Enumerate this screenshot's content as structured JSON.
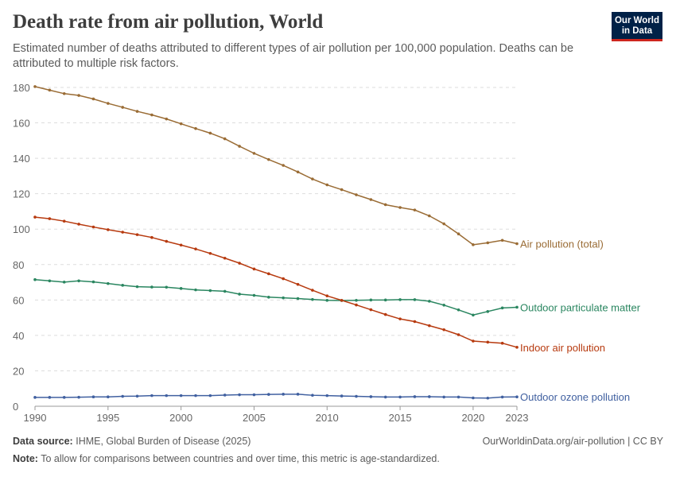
{
  "header": {
    "title": "Death rate from air pollution, World",
    "subtitle": "Estimated number of deaths attributed to different types of air pollution per 100,000 population. Deaths can be attributed to multiple risk factors.",
    "logo_line1": "Our World",
    "logo_line2": "in Data"
  },
  "footer": {
    "source_label": "Data source:",
    "source": "IHME, Global Burden of Disease (2025)",
    "url": "OurWorldinData.org/air-pollution | CC BY",
    "note_label": "Note:",
    "note": "To allow for comparisons between countries and over time, this metric is age-standardized."
  },
  "chart_data": {
    "type": "line",
    "title": "Death rate from air pollution, World",
    "xlim": [
      1990,
      2023
    ],
    "ylim": [
      0,
      180
    ],
    "xticks": [
      1990,
      1995,
      2000,
      2005,
      2010,
      2015,
      2020,
      2023
    ],
    "yticks": [
      0,
      20,
      40,
      60,
      80,
      100,
      120,
      140,
      160,
      180
    ],
    "grid": "horizontal dashed",
    "legend": "inline-right",
    "x": [
      1990,
      1991,
      1992,
      1993,
      1994,
      1995,
      1996,
      1997,
      1998,
      1999,
      2000,
      2001,
      2002,
      2003,
      2004,
      2005,
      2006,
      2007,
      2008,
      2009,
      2010,
      2011,
      2012,
      2013,
      2014,
      2015,
      2016,
      2017,
      2018,
      2019,
      2020,
      2021,
      2022,
      2023
    ],
    "series": [
      {
        "name": "Air pollution (total)",
        "color": "#9a6c35",
        "values": [
          180.5,
          178.5,
          176.5,
          175.5,
          173.5,
          171,
          168.8,
          166.5,
          164.5,
          162.2,
          159.5,
          156.8,
          154.2,
          151,
          146.8,
          142.8,
          139.3,
          136,
          132.3,
          128.3,
          125,
          122.3,
          119.4,
          116.7,
          113.8,
          112.2,
          110.8,
          107.5,
          103,
          97.3,
          91.2,
          92.3,
          93.7,
          91.8
        ]
      },
      {
        "name": "Outdoor particulate matter",
        "color": "#2a8660",
        "values": [
          71.5,
          70.8,
          70.1,
          70.8,
          70.2,
          69.3,
          68.3,
          67.5,
          67.3,
          67.2,
          66.5,
          65.7,
          65.3,
          64.9,
          63.3,
          62.6,
          61.6,
          61.2,
          60.8,
          60.3,
          59.8,
          59.7,
          59.8,
          60,
          60,
          60.2,
          60.2,
          59.3,
          57.1,
          54.4,
          51.5,
          53.5,
          55.5,
          55.9
        ]
      },
      {
        "name": "Indoor air pollution",
        "color": "#b73a0f",
        "values": [
          106.8,
          105.9,
          104.5,
          102.8,
          101.2,
          99.7,
          98.3,
          96.9,
          95.3,
          93.1,
          91,
          88.8,
          86.3,
          83.6,
          80.8,
          77.5,
          74.8,
          72,
          68.8,
          65.5,
          62.3,
          59.8,
          57.2,
          54.5,
          51.8,
          49.3,
          47.8,
          45.5,
          43.2,
          40.4,
          36.8,
          36.2,
          35.6,
          33.3
        ]
      },
      {
        "name": "Outdoor ozone pollution",
        "color": "#4060a0",
        "values": [
          5,
          5,
          5,
          5.1,
          5.3,
          5.3,
          5.6,
          5.7,
          6,
          6,
          6,
          6,
          6,
          6.3,
          6.5,
          6.5,
          6.7,
          6.8,
          6.8,
          6.2,
          6,
          5.8,
          5.6,
          5.4,
          5.2,
          5.2,
          5.4,
          5.4,
          5.2,
          5.2,
          4.7,
          4.6,
          5.2,
          5.3
        ]
      }
    ]
  }
}
